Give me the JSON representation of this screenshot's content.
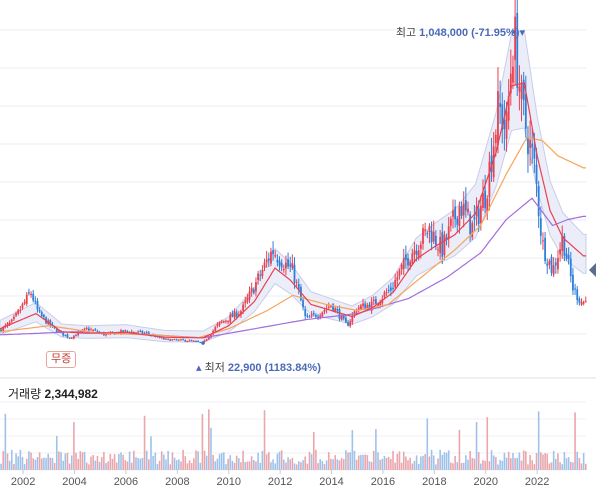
{
  "chart_data": {
    "type": "candlestick",
    "x_ticks": [
      "2002",
      "2004",
      "2006",
      "2008",
      "2010",
      "2012",
      "2014",
      "2016",
      "2018",
      "2020",
      "2022"
    ],
    "x_range": [
      2001.1,
      2023.9
    ],
    "y_range": [
      0,
      1120000
    ],
    "grid": true,
    "annotations": {
      "high_label": "최고",
      "high_value": "1,048,000 (-71.95%)",
      "low_label": "최저",
      "low_value": "22,900 (1183.84%)",
      "badge": "무증"
    },
    "price_path": [
      [
        2001.1,
        65000
      ],
      [
        2001.6,
        95000
      ],
      [
        2002.3,
        190000
      ],
      [
        2002.6,
        120000
      ],
      [
        2003.2,
        70000
      ],
      [
        2003.8,
        40000
      ],
      [
        2004.5,
        70000
      ],
      [
        2005.2,
        50000
      ],
      [
        2006.0,
        62000
      ],
      [
        2006.8,
        55000
      ],
      [
        2007.5,
        35000
      ],
      [
        2008.5,
        30000
      ],
      [
        2009.0,
        23000
      ],
      [
        2009.6,
        85000
      ],
      [
        2010.5,
        130000
      ],
      [
        2011.0,
        210000
      ],
      [
        2011.7,
        330000
      ],
      [
        2012.0,
        300000
      ],
      [
        2012.5,
        260000
      ],
      [
        2013.0,
        100000
      ],
      [
        2013.5,
        120000
      ],
      [
        2014.0,
        150000
      ],
      [
        2014.6,
        80000
      ],
      [
        2015.0,
        140000
      ],
      [
        2015.6,
        150000
      ],
      [
        2016.3,
        200000
      ],
      [
        2017.0,
        310000
      ],
      [
        2017.8,
        400000
      ],
      [
        2018.3,
        330000
      ],
      [
        2019.0,
        480000
      ],
      [
        2019.5,
        400000
      ],
      [
        2020.0,
        520000
      ],
      [
        2020.5,
        800000
      ],
      [
        2020.8,
        720000
      ],
      [
        2021.0,
        960000
      ],
      [
        2021.1,
        1048000
      ],
      [
        2021.4,
        800000
      ],
      [
        2021.9,
        600000
      ],
      [
        2022.2,
        350000
      ],
      [
        2022.6,
        260000
      ],
      [
        2023.0,
        370000
      ],
      [
        2023.4,
        200000
      ],
      [
        2023.7,
        160000
      ]
    ],
    "ma_short": [
      [
        2001.1,
        70000
      ],
      [
        2002.5,
        120000
      ],
      [
        2003.5,
        60000
      ],
      [
        2004.5,
        55000
      ],
      [
        2006.0,
        58000
      ],
      [
        2007.5,
        42000
      ],
      [
        2009.0,
        40000
      ],
      [
        2010.0,
        80000
      ],
      [
        2011.0,
        160000
      ],
      [
        2011.8,
        270000
      ],
      [
        2012.4,
        230000
      ],
      [
        2013.2,
        150000
      ],
      [
        2014.0,
        130000
      ],
      [
        2014.8,
        110000
      ],
      [
        2015.6,
        140000
      ],
      [
        2016.4,
        190000
      ],
      [
        2017.3,
        300000
      ],
      [
        2018.0,
        340000
      ],
      [
        2018.8,
        380000
      ],
      [
        2019.6,
        450000
      ],
      [
        2020.4,
        650000
      ],
      [
        2021.0,
        870000
      ],
      [
        2021.5,
        880000
      ],
      [
        2022.0,
        640000
      ],
      [
        2022.5,
        460000
      ],
      [
        2023.0,
        370000
      ],
      [
        2023.8,
        310000
      ]
    ],
    "ma_mid": [
      [
        2001.1,
        60000
      ],
      [
        2003.0,
        80000
      ],
      [
        2005.0,
        55000
      ],
      [
        2007.0,
        50000
      ],
      [
        2008.8,
        40000
      ],
      [
        2010.0,
        70000
      ],
      [
        2011.5,
        130000
      ],
      [
        2012.5,
        180000
      ],
      [
        2013.8,
        150000
      ],
      [
        2015.0,
        130000
      ],
      [
        2016.2,
        150000
      ],
      [
        2017.5,
        240000
      ],
      [
        2018.8,
        330000
      ],
      [
        2019.8,
        410000
      ],
      [
        2020.8,
        580000
      ],
      [
        2021.6,
        700000
      ],
      [
        2022.2,
        690000
      ],
      [
        2022.8,
        640000
      ],
      [
        2023.8,
        600000
      ]
    ],
    "ma_long": [
      [
        2001.1,
        50000
      ],
      [
        2004.0,
        60000
      ],
      [
        2007.0,
        50000
      ],
      [
        2009.0,
        40000
      ],
      [
        2011.0,
        70000
      ],
      [
        2013.0,
        100000
      ],
      [
        2015.0,
        120000
      ],
      [
        2017.0,
        170000
      ],
      [
        2018.5,
        240000
      ],
      [
        2019.8,
        320000
      ],
      [
        2020.8,
        430000
      ],
      [
        2021.8,
        500000
      ],
      [
        2022.6,
        410000
      ],
      [
        2023.2,
        430000
      ],
      [
        2023.8,
        440000
      ]
    ],
    "colors": {
      "up": "#e8414f",
      "down": "#2f7fd8",
      "ma_short": "#e8414f",
      "ma_mid": "#f5a55a",
      "ma_long": "#a26de0",
      "band": "#c9cdea",
      "accent": "#4a6ab8"
    }
  },
  "volume": {
    "label": "거래량",
    "value": "2,344,982"
  },
  "current_marker_icon": "left-pointing-triangle"
}
